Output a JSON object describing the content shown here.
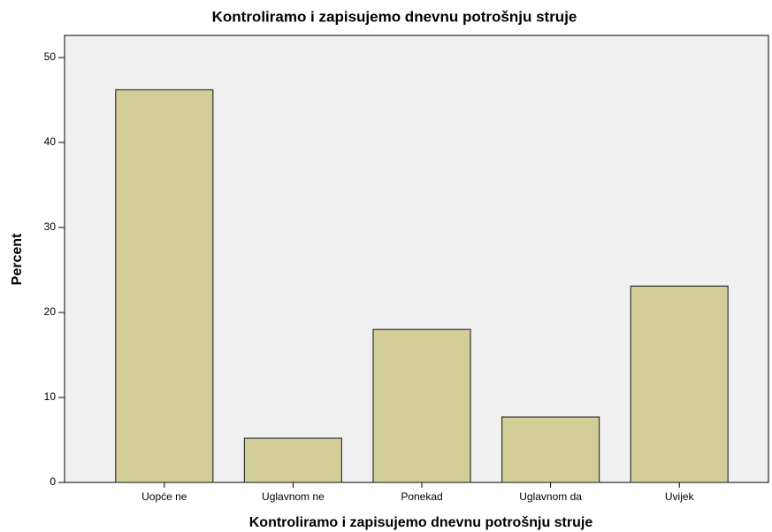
{
  "chart_data": {
    "type": "bar",
    "title": "Kontroliramo i zapisujemo dnevnu potrošnju struje",
    "x_label": "Kontroliramo i zapisujemo dnevnu potrošnju struje",
    "y_label": "Percent",
    "categories": [
      "Uopće ne",
      "Uglavnom ne",
      "Ponekad",
      "Uglavnom da",
      "Uvijek"
    ],
    "values": [
      46.2,
      5.2,
      18.0,
      7.7,
      23.1
    ],
    "color": "#d3ce97",
    "ylim": [
      0,
      52.6
    ],
    "yticks": [
      0,
      10,
      20,
      30,
      40,
      50
    ],
    "grid": false
  }
}
